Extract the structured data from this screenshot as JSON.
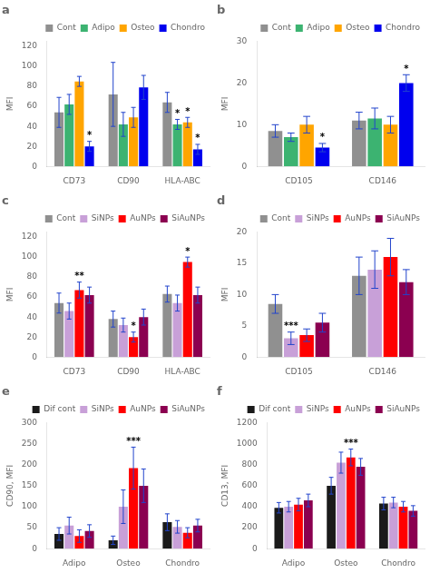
{
  "chart_data": [
    {
      "type": "bar",
      "title": "a",
      "categories": [
        "CD73",
        "CD90",
        "HLA-ABC"
      ],
      "series": [
        {
          "name": "Cont",
          "color": "#909090",
          "values": [
            54,
            72,
            64
          ],
          "errors": [
            15,
            32,
            10
          ],
          "annotations": [
            null,
            null,
            null
          ]
        },
        {
          "name": "Adipo",
          "color": "#3cb371",
          "values": [
            62,
            42,
            42
          ],
          "errors": [
            10,
            12,
            5
          ],
          "annotations": [
            null,
            null,
            "*"
          ]
        },
        {
          "name": "Osteo",
          "color": "#ffa500",
          "values": [
            85,
            49,
            44
          ],
          "errors": [
            5,
            10,
            5
          ],
          "annotations": [
            null,
            null,
            "*"
          ]
        },
        {
          "name": "Chondro",
          "color": "#0000ee",
          "values": [
            20,
            79,
            17
          ],
          "errors": [
            5,
            12,
            5
          ],
          "annotations": [
            "*",
            null,
            "*"
          ]
        }
      ],
      "y_label": "MFI",
      "ylim": [
        0,
        125
      ],
      "yticks": [
        0,
        20,
        40,
        60,
        80,
        100,
        120
      ],
      "grid": false,
      "legend": "upper right"
    },
    {
      "type": "bar",
      "title": "b",
      "categories": [
        "CD105",
        "CD146"
      ],
      "series": [
        {
          "name": "Cont",
          "color": "#909090",
          "values": [
            8.5,
            11
          ],
          "errors": [
            1.5,
            2
          ],
          "annotations": [
            null,
            null
          ]
        },
        {
          "name": "Adipo",
          "color": "#3cb371",
          "values": [
            7,
            11.5
          ],
          "errors": [
            1,
            2.5
          ],
          "annotations": [
            null,
            null
          ]
        },
        {
          "name": "Osteo",
          "color": "#ffa500",
          "values": [
            10,
            10
          ],
          "errors": [
            2,
            2
          ],
          "annotations": [
            null,
            null
          ]
        },
        {
          "name": "Chondro",
          "color": "#0000ee",
          "values": [
            4.5,
            20
          ],
          "errors": [
            1,
            2
          ],
          "annotations": [
            "*",
            "*"
          ]
        }
      ],
      "y_label": "MFI",
      "ylim": [
        0,
        30
      ],
      "yticks": [
        0,
        10,
        20,
        30
      ],
      "grid": false,
      "legend": "upper right"
    },
    {
      "type": "bar",
      "title": "c",
      "categories": [
        "CD73",
        "CD90",
        "HLA-ABC"
      ],
      "series": [
        {
          "name": "Cont",
          "color": "#909090",
          "values": [
            54,
            38,
            63
          ],
          "errors": [
            10,
            8,
            8
          ],
          "annotations": [
            null,
            null,
            null
          ]
        },
        {
          "name": "SiNPs",
          "color": "#c8a0d8",
          "values": [
            46,
            32,
            54
          ],
          "errors": [
            8,
            7,
            8
          ],
          "annotations": [
            null,
            null,
            null
          ]
        },
        {
          "name": "AuNPs",
          "color": "#ff0000",
          "values": [
            67,
            20,
            95
          ],
          "errors": [
            8,
            5,
            5
          ],
          "annotations": [
            "**",
            "*",
            "*"
          ]
        },
        {
          "name": "SiAuNPs",
          "color": "#8b0050",
          "values": [
            62,
            40,
            62
          ],
          "errors": [
            8,
            8,
            8
          ],
          "annotations": [
            null,
            null,
            null
          ]
        }
      ],
      "y_label": "MFI",
      "ylim": [
        0,
        125
      ],
      "yticks": [
        0,
        20,
        40,
        60,
        80,
        100,
        120
      ],
      "grid": false,
      "legend": "upper right"
    },
    {
      "type": "bar",
      "title": "d",
      "categories": [
        "CD105",
        "CD146"
      ],
      "series": [
        {
          "name": "Cont",
          "color": "#909090",
          "values": [
            8.5,
            13
          ],
          "errors": [
            1.5,
            3
          ],
          "annotations": [
            null,
            null
          ]
        },
        {
          "name": "SiNPs",
          "color": "#c8a0d8",
          "values": [
            3,
            14
          ],
          "errors": [
            1,
            3
          ],
          "annotations": [
            "***",
            null
          ]
        },
        {
          "name": "AuNPs",
          "color": "#ff0000",
          "values": [
            3.5,
            16
          ],
          "errors": [
            1,
            3
          ],
          "annotations": [
            null,
            null
          ]
        },
        {
          "name": "SiAuNPs",
          "color": "#8b0050",
          "values": [
            5.5,
            12
          ],
          "errors": [
            1.5,
            2
          ],
          "annotations": [
            null,
            null
          ]
        }
      ],
      "y_label": "MFI",
      "ylim": [
        0,
        20
      ],
      "yticks": [
        0,
        5,
        10,
        15,
        20
      ],
      "grid": false,
      "legend": "upper right"
    },
    {
      "type": "bar",
      "title": "e",
      "categories": [
        "Adipo",
        "Osteo",
        "Chondro"
      ],
      "series": [
        {
          "name": "Dif cont",
          "color": "#1a1a1a",
          "values": [
            35,
            20,
            63
          ],
          "errors": [
            15,
            10,
            20
          ],
          "annotations": [
            null,
            null,
            null
          ]
        },
        {
          "name": "SiNPs",
          "color": "#c8a0d8",
          "values": [
            55,
            100,
            52
          ],
          "errors": [
            20,
            40,
            15
          ],
          "annotations": [
            null,
            null,
            null
          ]
        },
        {
          "name": "AuNPs",
          "color": "#ff0000",
          "values": [
            30,
            192,
            38
          ],
          "errors": [
            15,
            50,
            12
          ],
          "annotations": [
            null,
            "***",
            null
          ]
        },
        {
          "name": "SiAuNPs",
          "color": "#8b0050",
          "values": [
            42,
            150,
            55
          ],
          "errors": [
            15,
            40,
            15
          ],
          "annotations": [
            null,
            null,
            null
          ]
        }
      ],
      "y_label": "CD90, MFI",
      "ylim": [
        0,
        300
      ],
      "yticks": [
        0,
        50,
        100,
        150,
        200,
        250,
        300
      ],
      "grid": false,
      "legend": "upper right"
    },
    {
      "type": "bar",
      "title": "f",
      "categories": [
        "Adipo",
        "Osteo",
        "Chondro"
      ],
      "series": [
        {
          "name": "Dif cont",
          "color": "#1a1a1a",
          "values": [
            390,
            600,
            430
          ],
          "errors": [
            50,
            80,
            60
          ],
          "annotations": [
            null,
            null,
            null
          ]
        },
        {
          "name": "SiNPs",
          "color": "#c8a0d8",
          "values": [
            400,
            820,
            440
          ],
          "errors": [
            50,
            100,
            50
          ],
          "annotations": [
            null,
            null,
            null
          ]
        },
        {
          "name": "AuNPs",
          "color": "#ff0000",
          "values": [
            420,
            870,
            400
          ],
          "errors": [
            60,
            80,
            50
          ],
          "annotations": [
            null,
            "***",
            null
          ]
        },
        {
          "name": "SiAuNPs",
          "color": "#8b0050",
          "values": [
            460,
            780,
            360
          ],
          "errors": [
            60,
            80,
            50
          ],
          "annotations": [
            null,
            null,
            null
          ]
        }
      ],
      "y_label": "CD13, MFI",
      "ylim": [
        0,
        1200
      ],
      "yticks": [
        0,
        200,
        400,
        600,
        800,
        1000,
        1200
      ],
      "grid": false,
      "legend": "upper right"
    }
  ]
}
